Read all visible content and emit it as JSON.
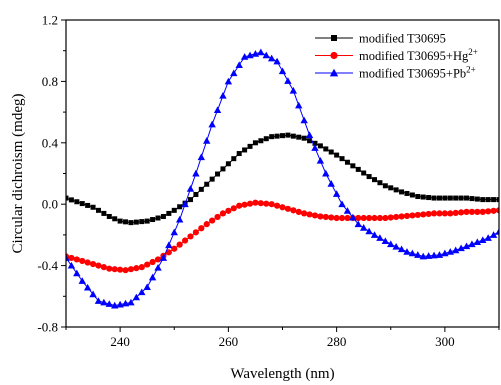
{
  "chart_data": {
    "type": "scatter",
    "xlabel": "Wavelength (nm)",
    "ylabel": "Circular dichroism (mdeg)",
    "xlim": [
      230,
      310
    ],
    "ylim": [
      -0.8,
      1.2
    ],
    "xticks": [
      240,
      260,
      280,
      300
    ],
    "yticks": [
      -0.8,
      -0.4,
      0.0,
      0.4,
      0.8,
      1.2
    ],
    "yticklabels": [
      "-0.8",
      "-0.4",
      "0.0",
      "0.4",
      "0.8",
      "1.2"
    ],
    "legend_position": "top-right",
    "grid": false,
    "series": [
      {
        "name": "modified T30695",
        "name_suffix": "",
        "color": "#000000",
        "marker": "square",
        "x": [
          230,
          235,
          238,
          240,
          242,
          245,
          248,
          250,
          253,
          256,
          259,
          262,
          265,
          268,
          271,
          274,
          277,
          280,
          283,
          286,
          289,
          292,
          295,
          298,
          301,
          304,
          307,
          310
        ],
        "y": [
          0.04,
          -0.02,
          -0.08,
          -0.11,
          -0.12,
          -0.11,
          -0.08,
          -0.04,
          0.03,
          0.13,
          0.23,
          0.33,
          0.4,
          0.44,
          0.45,
          0.43,
          0.38,
          0.32,
          0.25,
          0.18,
          0.12,
          0.08,
          0.05,
          0.04,
          0.04,
          0.04,
          0.03,
          0.03
        ]
      },
      {
        "name": "modified T30695+Hg",
        "name_suffix": "2+",
        "color": "#ff0000",
        "marker": "circle",
        "x": [
          230,
          234,
          238,
          241,
          244,
          247,
          250,
          253,
          256,
          259,
          262,
          265,
          268,
          271,
          274,
          277,
          280,
          283,
          286,
          289,
          292,
          295,
          298,
          301,
          304,
          307,
          310
        ],
        "y": [
          -0.34,
          -0.38,
          -0.42,
          -0.43,
          -0.41,
          -0.36,
          -0.29,
          -0.21,
          -0.13,
          -0.06,
          -0.01,
          0.01,
          0.0,
          -0.03,
          -0.06,
          -0.08,
          -0.09,
          -0.09,
          -0.09,
          -0.09,
          -0.08,
          -0.07,
          -0.06,
          -0.06,
          -0.05,
          -0.05,
          -0.04
        ]
      },
      {
        "name": "modified T30695+Pb",
        "name_suffix": "2+",
        "color": "#0000ff",
        "marker": "triangle",
        "x": [
          230,
          233,
          236,
          239,
          242,
          245,
          248,
          251,
          254,
          257,
          260,
          263,
          266,
          269,
          272,
          275,
          278,
          281,
          284,
          287,
          290,
          293,
          296,
          299,
          302,
          305,
          308,
          310
        ],
        "y": [
          -0.35,
          -0.5,
          -0.63,
          -0.66,
          -0.64,
          -0.54,
          -0.35,
          -0.1,
          0.2,
          0.52,
          0.8,
          0.96,
          0.99,
          0.93,
          0.74,
          0.45,
          0.2,
          0.0,
          -0.13,
          -0.2,
          -0.26,
          -0.31,
          -0.34,
          -0.33,
          -0.3,
          -0.26,
          -0.22,
          -0.18
        ]
      }
    ]
  }
}
